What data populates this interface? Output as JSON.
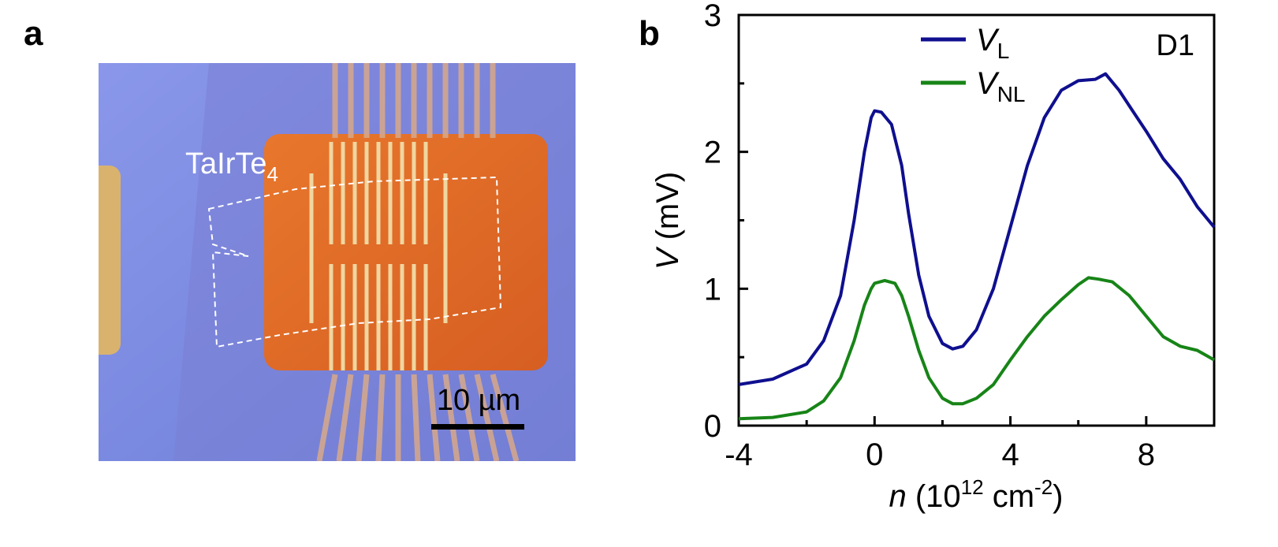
{
  "panel_a": {
    "label": "a",
    "sample_label": "TaIrTe",
    "sample_subscript": "4",
    "scale_bar_label": "10 µm",
    "colors": {
      "substrate": "#7f8fe0",
      "gold": "#e0672a",
      "leads": "#e8c98e"
    }
  },
  "panel_b": {
    "label": "b"
  },
  "chart_data": {
    "type": "line",
    "title": "",
    "annotation": "D1",
    "xlabel_italic": "n",
    "xlabel_rest": " (10",
    "xlabel_sup": "12",
    "xlabel_unit": " cm",
    "xlabel_unit_sup": "-2",
    "xlabel_close": ")",
    "ylabel_italic": "V",
    "ylabel_rest": " (mV)",
    "xlim": [
      -4,
      10
    ],
    "ylim": [
      0,
      3
    ],
    "xticks": [
      -4,
      0,
      4,
      8
    ],
    "xtick_labels": [
      "-4",
      "0",
      "4",
      "8"
    ],
    "yticks": [
      0,
      1,
      2,
      3
    ],
    "ytick_labels": [
      "0",
      "1",
      "2",
      "3"
    ],
    "legend_position": "top",
    "series": [
      {
        "name": "V",
        "name_sub": "L",
        "color": "#0f0f8f",
        "x": [
          -4,
          -3,
          -2,
          -1.5,
          -1,
          -0.6,
          -0.3,
          -0.1,
          0,
          0.2,
          0.5,
          0.8,
          1.0,
          1.3,
          1.6,
          2.0,
          2.3,
          2.6,
          3.0,
          3.5,
          4.0,
          4.5,
          5.0,
          5.5,
          6.0,
          6.5,
          6.8,
          7.2,
          7.6,
          8.0,
          8.5,
          9.0,
          9.5,
          10.0
        ],
        "y": [
          0.3,
          0.34,
          0.45,
          0.62,
          0.95,
          1.5,
          2.0,
          2.25,
          2.3,
          2.29,
          2.2,
          1.9,
          1.55,
          1.1,
          0.8,
          0.6,
          0.56,
          0.58,
          0.7,
          1.0,
          1.45,
          1.9,
          2.25,
          2.45,
          2.52,
          2.53,
          2.57,
          2.45,
          2.3,
          2.15,
          1.95,
          1.8,
          1.6,
          1.45
        ]
      },
      {
        "name": "V",
        "name_sub": "NL",
        "color": "#178417",
        "x": [
          -4,
          -3,
          -2,
          -1.5,
          -1,
          -0.6,
          -0.3,
          -0.1,
          0,
          0.3,
          0.6,
          0.8,
          1.0,
          1.3,
          1.6,
          2.0,
          2.3,
          2.6,
          3.0,
          3.5,
          4.0,
          4.5,
          5.0,
          5.5,
          6.0,
          6.3,
          6.6,
          7.0,
          7.5,
          8.0,
          8.5,
          9.0,
          9.5,
          10.0
        ],
        "y": [
          0.05,
          0.06,
          0.1,
          0.18,
          0.35,
          0.62,
          0.88,
          1.0,
          1.04,
          1.06,
          1.04,
          0.95,
          0.8,
          0.55,
          0.35,
          0.2,
          0.16,
          0.16,
          0.2,
          0.3,
          0.48,
          0.65,
          0.8,
          0.92,
          1.03,
          1.08,
          1.07,
          1.05,
          0.95,
          0.8,
          0.65,
          0.58,
          0.55,
          0.48
        ]
      }
    ]
  }
}
